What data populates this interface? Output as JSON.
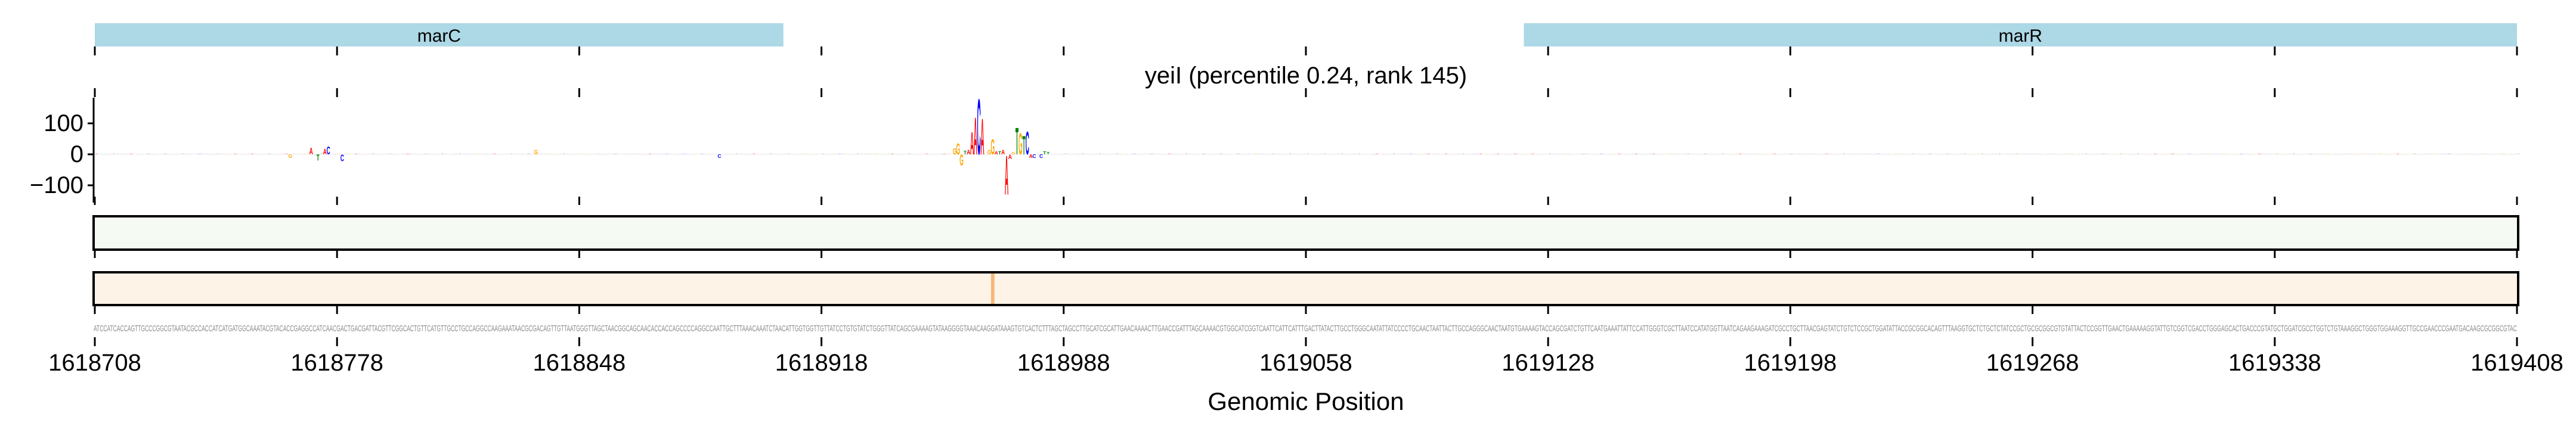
{
  "chart_data": {
    "type": "sequence-logo",
    "title": "yeiI (percentile 0.24, rank 145)",
    "xlabel": "Genomic Position",
    "ylabel": "",
    "start_position": 1618708,
    "xlim": [
      1618708,
      1619408
    ],
    "x_ticks": [
      1618708,
      1618778,
      1618848,
      1618918,
      1618988,
      1619058,
      1619128,
      1619198,
      1619268,
      1619338,
      1619408
    ],
    "y_ticks": [
      100,
      0,
      -100
    ],
    "y_tick_labels": [
      "100",
      "0",
      "−100"
    ],
    "ylim": [
      -135,
      185
    ],
    "genes": [
      {
        "name": "marC",
        "start": 1618708,
        "end": 1618907
      },
      {
        "name": "marR",
        "start": 1619121,
        "end": 1619408
      }
    ],
    "base_colors": {
      "A": "#ff0000",
      "C": "#0000ff",
      "G": "#ffa500",
      "T": "#008000"
    },
    "gene_color": "#add8e6",
    "tracks": [
      {
        "name": "track-1",
        "base_color": "#f5faf3",
        "highlights": []
      },
      {
        "name": "track-2",
        "base_color": "#fef3e7",
        "highlights": [
          {
            "offset": 259,
            "color": "#f6b77c"
          }
        ]
      }
    ],
    "sequence": "ATCCATCACCAGTTGCCCGGCGTAATACGCCACCATCATGATGGCAAATACGTACACCGAGGCCATCAACGACTGACGATTACGTTCGGCACTGTTCATGTTGCCTGCCAGGCCAAGAAATAACGCGACAGTTGTTAATGGGTTAGCTAACGGCAGCAACACCACCAGCCCCAGGCCAATTGCTTTAAACAAATCTAACATTGGTGGTTGTTATCCTGTGTATCTGGGTTATCAGCGAAAAGTATAAGGGGTAAACAAGGATAAAGTGTCACTCTTTAGCTAGCCTTGCATCGCATTGAACAAAACTTGAACCGATTTAGCAAAACGTGGCATCGGTCAATTCATTCATTTGACTTATACTTGCCTGGGCAATATTATCCCCTGCAACTAATTACTTGCCAGGGCAACTAATGTGAAAAGTACCAGCGATCTGTTCAATGAAATTATTCCATTGGGTCGCTTAATCCATATGGTTAATCAGAAGAAAGATCGCCTGCTTAACGAGTATCTGTCTCCGCTGGATATTACCGCGGCACAGTTTAAGGTGCTCTGCTCTATCCGCTGCGCGGCGTGTATTACTCCGGTTGAACTGAAAAAGGTATTGTCGGTCGACCTGGGAGCACTGACCCGTATGCTGGATCGCCTGGTCTGTAAAGGCTGGGTGGAAAGGTTGCCGAACCCGAATGACAAGCGCGGCGTAC",
    "attributions": [
      {
        "offset": 248,
        "base": "G",
        "value": 20
      },
      {
        "offset": 249,
        "base": "G",
        "value": 36
      },
      {
        "offset": 250,
        "base": "G",
        "value": -36
      },
      {
        "offset": 251,
        "base": "T",
        "value": 12
      },
      {
        "offset": 252,
        "base": "A",
        "value": 15
      },
      {
        "offset": 253,
        "base": "A",
        "value": 75
      },
      {
        "offset": 254,
        "base": "A",
        "value": 124
      },
      {
        "offset": 255,
        "base": "C",
        "value": 185
      },
      {
        "offset": 256,
        "base": "A",
        "value": 120
      },
      {
        "offset": 258,
        "base": "G",
        "value": 15
      },
      {
        "offset": 259,
        "base": "G",
        "value": 50
      },
      {
        "offset": 260,
        "base": "A",
        "value": 10
      },
      {
        "offset": 261,
        "base": "T",
        "value": 10
      },
      {
        "offset": 262,
        "base": "A",
        "value": 15
      },
      {
        "offset": 263,
        "base": "A",
        "value": -130
      },
      {
        "offset": 264,
        "base": "A",
        "value": -15
      },
      {
        "offset": 265,
        "base": "G",
        "value": 8
      },
      {
        "offset": 266,
        "base": "T",
        "value": 88
      },
      {
        "offset": 267,
        "base": "G",
        "value": 70
      },
      {
        "offset": 268,
        "base": "T",
        "value": 61
      },
      {
        "offset": 269,
        "base": "C",
        "value": 76
      },
      {
        "offset": 270,
        "base": "A",
        "value": -12
      },
      {
        "offset": 271,
        "base": "C",
        "value": -12
      },
      {
        "offset": 273,
        "base": "C",
        "value": -12
      },
      {
        "offset": 274,
        "base": "T",
        "value": 10
      },
      {
        "offset": 275,
        "base": "T",
        "value": 8
      },
      {
        "offset": 62,
        "base": "A",
        "value": 22
      },
      {
        "offset": 64,
        "base": "T",
        "value": -20
      },
      {
        "offset": 66,
        "base": "A",
        "value": 18
      },
      {
        "offset": 67,
        "base": "C",
        "value": 25
      },
      {
        "offset": 71,
        "base": "C",
        "value": -22
      },
      {
        "offset": 56,
        "base": "G",
        "value": -12
      },
      {
        "offset": 127,
        "base": "G",
        "value": 15
      },
      {
        "offset": 180,
        "base": "C",
        "value": -12
      },
      {
        "offset": 3950,
        "base": "C",
        "value": 0
      }
    ]
  }
}
